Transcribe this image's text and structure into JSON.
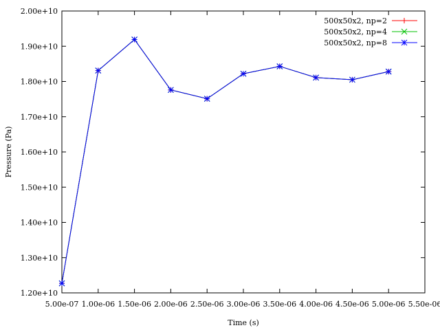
{
  "chart_data": {
    "type": "line",
    "title": "",
    "xlabel": "Time (s)",
    "ylabel": "Pressure (Pa)",
    "xlim": [
      5e-07,
      5.5e-06
    ],
    "ylim": [
      12000000000.0,
      20000000000.0
    ],
    "grid": false,
    "legend_position": "top-right",
    "x_ticks": [
      5e-07,
      1e-06,
      1.5e-06,
      2e-06,
      2.5e-06,
      3e-06,
      3.5e-06,
      4e-06,
      4.5e-06,
      5e-06,
      5.5e-06
    ],
    "x_tick_labels": [
      "5.00e-07",
      "1.00e-06",
      "1.50e-06",
      "2.00e-06",
      "2.50e-06",
      "3.00e-06",
      "3.50e-06",
      "4.00e-06",
      "4.50e-06",
      "5.00e-06",
      "5.50e-06"
    ],
    "y_ticks": [
      12000000000.0,
      13000000000.0,
      14000000000.0,
      15000000000.0,
      16000000000.0,
      17000000000.0,
      18000000000.0,
      19000000000.0,
      20000000000.0
    ],
    "y_tick_labels": [
      "1.20e+10",
      "1.30e+10",
      "1.40e+10",
      "1.50e+10",
      "1.60e+10",
      "1.70e+10",
      "1.80e+10",
      "1.90e+10",
      "2.00e+10"
    ],
    "x": [
      5e-07,
      1e-06,
      1.5e-06,
      2e-06,
      2.5e-06,
      3e-06,
      3.5e-06,
      4e-06,
      4.5e-06,
      5e-06
    ],
    "series": [
      {
        "name": "500x50x2, np=2",
        "color": "#ff0000",
        "marker": "plus",
        "values": [
          12270000000.0,
          18310000000.0,
          19190000000.0,
          17760000000.0,
          17510000000.0,
          18220000000.0,
          18430000000.0,
          18110000000.0,
          18050000000.0,
          18280000000.0
        ]
      },
      {
        "name": "500x50x2, np=4",
        "color": "#00c000",
        "marker": "cross",
        "values": [
          12270000000.0,
          18310000000.0,
          19190000000.0,
          17760000000.0,
          17510000000.0,
          18220000000.0,
          18430000000.0,
          18110000000.0,
          18050000000.0,
          18280000000.0
        ]
      },
      {
        "name": "500x50x2, np=8",
        "color": "#0000ff",
        "marker": "star",
        "values": [
          12270000000.0,
          18310000000.0,
          19190000000.0,
          17760000000.0,
          17510000000.0,
          18220000000.0,
          18430000000.0,
          18110000000.0,
          18050000000.0,
          18280000000.0
        ]
      }
    ]
  }
}
